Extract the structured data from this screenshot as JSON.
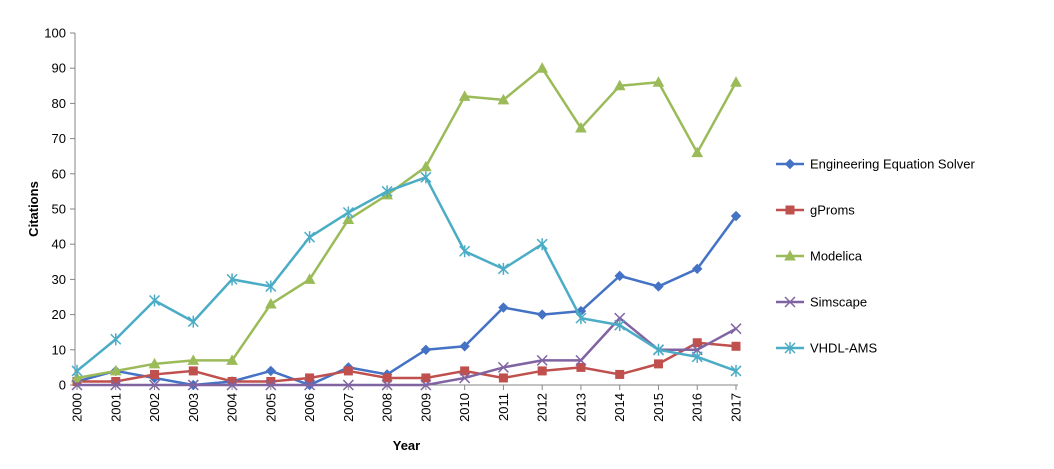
{
  "chart_data": {
    "type": "line",
    "title": "",
    "xlabel": "Year",
    "ylabel": "Citations",
    "ylim": [
      0,
      100
    ],
    "ytick_step": 10,
    "grid": false,
    "legend_position": "right",
    "categories": [
      "2000",
      "2001",
      "2002",
      "2003",
      "2004",
      "2005",
      "2006",
      "2007",
      "2008",
      "2009",
      "2010",
      "2011",
      "2012",
      "2013",
      "2014",
      "2015",
      "2016",
      "2017"
    ],
    "series": [
      {
        "name": "Engineering Equation Solver",
        "color": "#4472C4",
        "marker": "diamond",
        "values": [
          1,
          4,
          2,
          0,
          1,
          4,
          0,
          5,
          3,
          10,
          11,
          22,
          20,
          21,
          31,
          28,
          33,
          48
        ]
      },
      {
        "name": "gProms",
        "color": "#C0504D",
        "marker": "square",
        "values": [
          1,
          1,
          3,
          4,
          1,
          1,
          2,
          4,
          2,
          2,
          4,
          2,
          4,
          5,
          3,
          6,
          12,
          11
        ]
      },
      {
        "name": "Modelica",
        "color": "#9BBB59",
        "marker": "triangle",
        "values": [
          2,
          4,
          6,
          7,
          7,
          23,
          30,
          47,
          54,
          62,
          82,
          81,
          90,
          73,
          85,
          86,
          66,
          86
        ]
      },
      {
        "name": "Simscape",
        "color": "#8064A2",
        "marker": "x",
        "values": [
          0,
          0,
          0,
          0,
          0,
          0,
          0,
          0,
          0,
          0,
          2,
          5,
          7,
          7,
          19,
          10,
          10,
          16
        ]
      },
      {
        "name": "VHDL-AMS",
        "color": "#4BACC6",
        "marker": "star",
        "values": [
          4,
          13,
          24,
          18,
          30,
          28,
          42,
          49,
          55,
          59,
          38,
          33,
          40,
          19,
          17,
          10,
          8,
          4
        ]
      }
    ]
  }
}
